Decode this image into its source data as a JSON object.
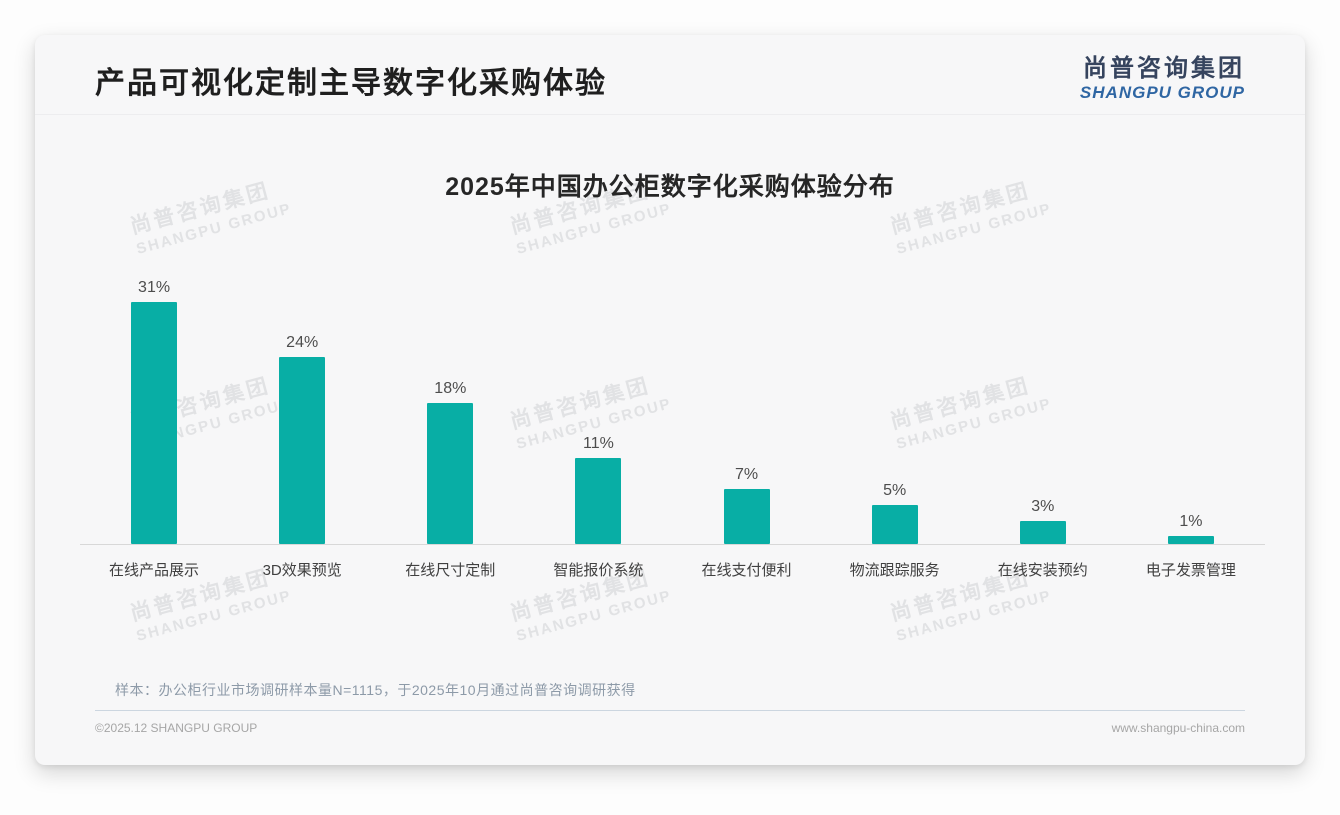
{
  "header": {
    "title": "产品可视化定制主导数字化采购体验",
    "logo_cn": "尚普咨询集团",
    "logo_en": "SHANGPU GROUP"
  },
  "chart_data": {
    "type": "bar",
    "title": "2025年中国办公柜数字化采购体验分布",
    "categories": [
      "在线产品展示",
      "3D效果预览",
      "在线尺寸定制",
      "智能报价系统",
      "在线支付便利",
      "物流跟踪服务",
      "在线安装预约",
      "电子发票管理"
    ],
    "values": [
      31,
      24,
      18,
      11,
      7,
      5,
      3,
      1
    ],
    "unit": "%",
    "value_labels": [
      "31%",
      "24%",
      "18%",
      "11%",
      "7%",
      "5%",
      "3%",
      "1%"
    ],
    "bar_color": "#08aea5",
    "ylim": [
      0,
      31
    ],
    "grid": false,
    "legend": "none",
    "xlabel": "",
    "ylabel": ""
  },
  "watermark": {
    "line1": "尚普咨询集团",
    "line2": "SHANGPU GROUP"
  },
  "footnote": {
    "text": "样本：办公柜行业市场调研样本量N=1115，于2025年10月通过尚普咨询调研获得"
  },
  "footer": {
    "copyright": "©2025.12 SHANGPU GROUP",
    "website": "www.shangpu-china.com"
  }
}
